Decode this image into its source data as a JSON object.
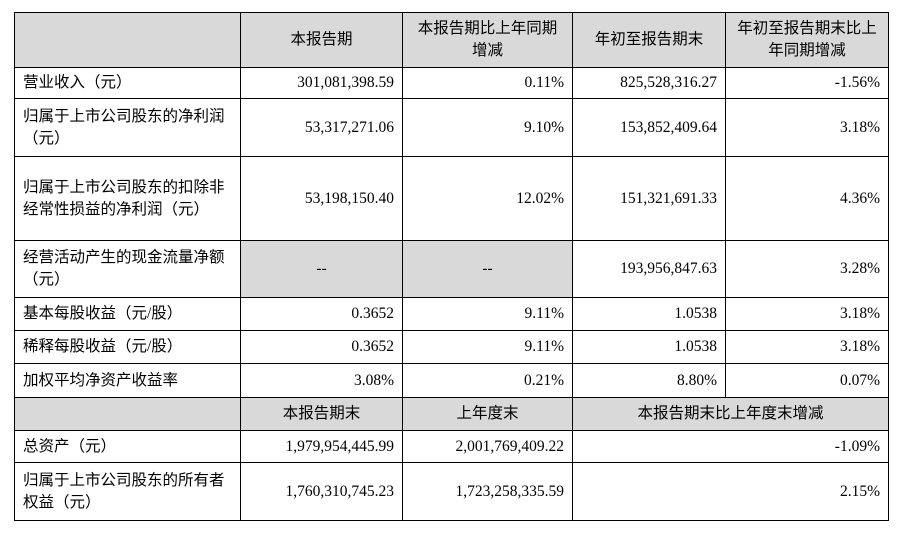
{
  "table": {
    "header": [
      "",
      "本报告期",
      "本报告期比上年同期增减",
      "年初至报告期末",
      "年初至报告期末比上年同期增减"
    ],
    "rows": [
      [
        "营业收入（元）",
        "301,081,398.59",
        "0.11%",
        "825,528,316.27",
        "-1.56%"
      ],
      [
        "归属于上市公司股东的净利润（元）",
        "53,317,271.06",
        "9.10%",
        "153,852,409.64",
        "3.18%"
      ],
      [
        "归属于上市公司股东的扣除非经常性损益的净利润（元）",
        "53,198,150.40",
        "12.02%",
        "151,321,691.33",
        "4.36%"
      ],
      [
        "经营活动产生的现金流量净额（元）",
        "--",
        "--",
        "193,956,847.63",
        "3.28%"
      ],
      [
        "基本每股收益（元/股）",
        "0.3652",
        "9.11%",
        "1.0538",
        "3.18%"
      ],
      [
        "稀释每股收益（元/股）",
        "0.3652",
        "9.11%",
        "1.0538",
        "3.18%"
      ],
      [
        "加权平均净资产收益率",
        "3.08%",
        "0.21%",
        "8.80%",
        "0.07%"
      ]
    ],
    "header2": [
      "",
      "本报告期末",
      "上年度末",
      "本报告期末比上年度末增减"
    ],
    "rows2": [
      [
        "总资产（元）",
        "1,979,954,445.99",
        "2,001,769,409.22",
        "-1.09%"
      ],
      [
        "归属于上市公司股东的所有者权益（元）",
        "1,760,310,745.23",
        "1,723,258,335.59",
        "2.15%"
      ]
    ]
  }
}
